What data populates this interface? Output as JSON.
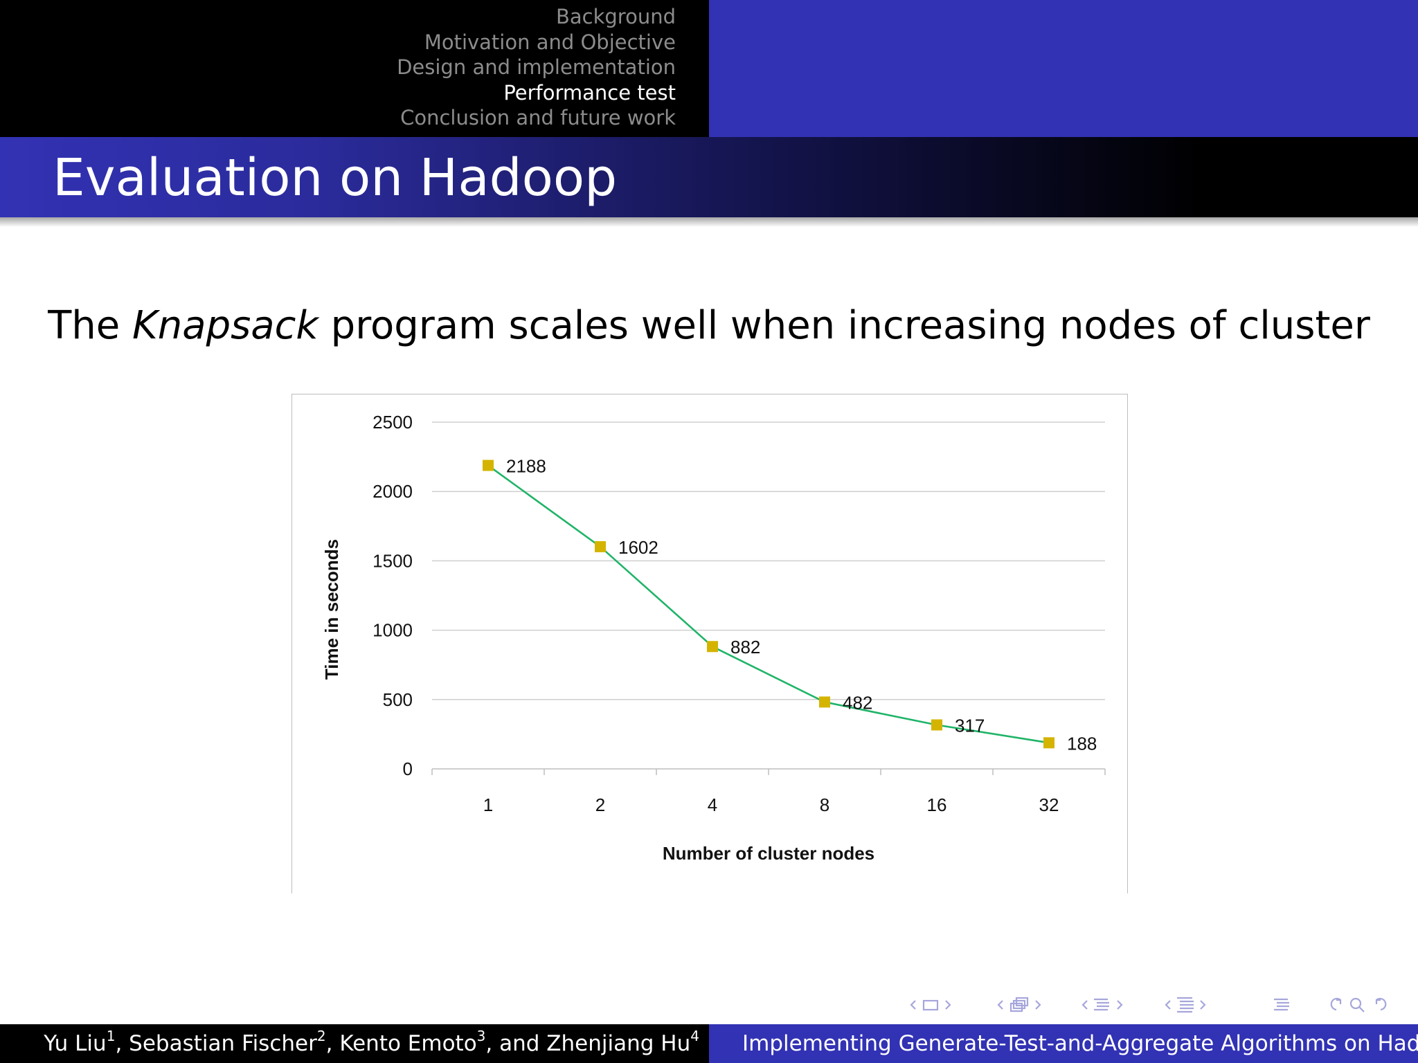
{
  "header": {
    "sections": [
      {
        "label": "Background",
        "active": false
      },
      {
        "label": "Motivation and Objective",
        "active": false
      },
      {
        "label": "Design and implementation",
        "active": false
      },
      {
        "label": "Performance test",
        "active": true
      },
      {
        "label": "Conclusion and future work",
        "active": false
      }
    ]
  },
  "frame": {
    "title": "Evaluation on Hadoop",
    "sentence_before": "The ",
    "sentence_emph": "Knapsack",
    "sentence_after": " program scales well when increasing nodes of cluster"
  },
  "chart_data": {
    "type": "line",
    "categories": [
      "1",
      "2",
      "4",
      "8",
      "16",
      "32"
    ],
    "values": [
      2188,
      1602,
      882,
      482,
      317,
      188
    ],
    "data_labels": [
      "2188",
      "1602",
      "882",
      "482",
      "317",
      "188"
    ],
    "xlabel": "Number of cluster nodes",
    "ylabel": "Time in seconds",
    "ylim": [
      0,
      2500
    ],
    "yticks": [
      0,
      500,
      1000,
      1500,
      2000,
      2500
    ],
    "grid": true,
    "legend": "none",
    "line_color": "#1fb468",
    "marker_color": "#d4b400",
    "marker": "square"
  },
  "footer": {
    "authors": [
      {
        "name": "Yu Liu",
        "sup": "1",
        "sep": ", "
      },
      {
        "name": "Sebastian Fischer",
        "sup": "2",
        "sep": ", "
      },
      {
        "name": "Kento Emoto",
        "sup": "3",
        "sep": ", and "
      },
      {
        "name": "Zhenjiang Hu",
        "sup": "4",
        "sep": ""
      }
    ],
    "talk_title": "Implementing Generate-Test-and-Aggregate Algorithms on Hadoop"
  },
  "colors": {
    "beamer_blue": "#3232b4",
    "header_black": "#000000",
    "nav_inactive": "#8c8c8c",
    "nav_symbols": "#a6a6dc"
  },
  "nav_symbols": [
    "frame-prev-icon",
    "frame-icon",
    "frame-next-icon",
    "subsection-prev-icon",
    "subsection-icon",
    "subsection-next-icon",
    "section-prev-icon",
    "section-icon",
    "section-next-icon",
    "slide-prev-icon",
    "slide-icon",
    "slide-next-icon",
    "outline-icon",
    "back-icon",
    "search-icon",
    "forward-icon"
  ]
}
